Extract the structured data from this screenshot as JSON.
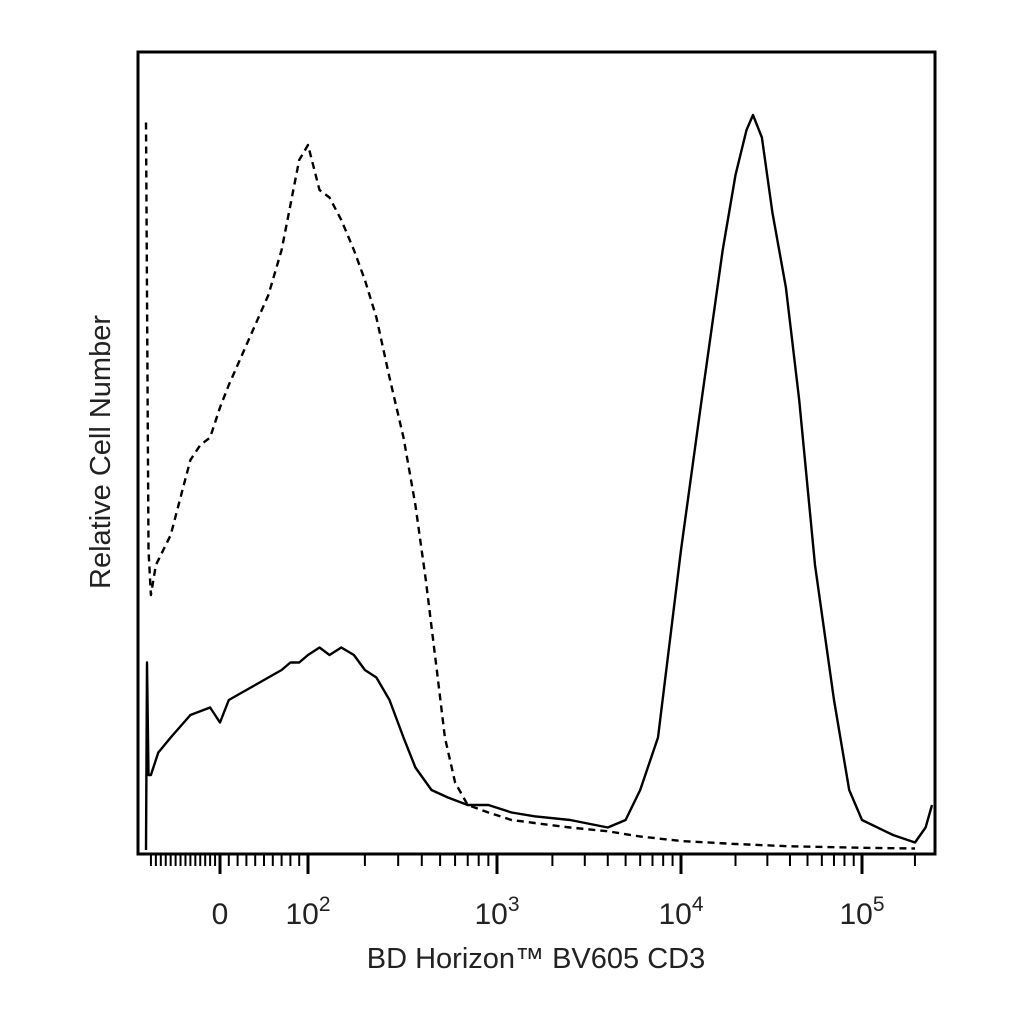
{
  "chart_data": {
    "type": "line",
    "title": "",
    "xlabel": "BD Horizon™ BV605 CD3",
    "ylabel": "Relative Cell Number",
    "x_scale": "logicle",
    "xlim": [
      -150,
      250000
    ],
    "ylim": [
      0,
      100
    ],
    "x_ticks": [
      {
        "value": 0,
        "base": "0",
        "exp": ""
      },
      {
        "value": 100,
        "base": "10",
        "exp": "2"
      },
      {
        "value": 1000,
        "base": "10",
        "exp": "3"
      },
      {
        "value": 10000,
        "base": "10",
        "exp": "4"
      },
      {
        "value": 100000,
        "base": "10",
        "exp": "5"
      }
    ],
    "grid": false,
    "legend": "none",
    "series": [
      {
        "style": "dashed",
        "color": "#000000",
        "points": [
          [
            -150,
            97
          ],
          [
            -145,
            40
          ],
          [
            -140,
            34
          ],
          [
            -130,
            38
          ],
          [
            -115,
            40
          ],
          [
            -100,
            42
          ],
          [
            -80,
            47
          ],
          [
            -60,
            52
          ],
          [
            -40,
            54
          ],
          [
            -20,
            55
          ],
          [
            0,
            59
          ],
          [
            10,
            62
          ],
          [
            25,
            66
          ],
          [
            40,
            70
          ],
          [
            55,
            74
          ],
          [
            70,
            80
          ],
          [
            80,
            86
          ],
          [
            90,
            92
          ],
          [
            100,
            94
          ],
          [
            115,
            88
          ],
          [
            130,
            87
          ],
          [
            150,
            84
          ],
          [
            175,
            80
          ],
          [
            200,
            76
          ],
          [
            230,
            71
          ],
          [
            270,
            63
          ],
          [
            320,
            55
          ],
          [
            370,
            46
          ],
          [
            420,
            36
          ],
          [
            480,
            24
          ],
          [
            530,
            15
          ],
          [
            600,
            9
          ],
          [
            700,
            6
          ],
          [
            900,
            5
          ],
          [
            1200,
            4
          ],
          [
            1600,
            3.6
          ],
          [
            2500,
            3
          ],
          [
            4000,
            2.5
          ],
          [
            6000,
            1.8
          ],
          [
            10000,
            1.2
          ],
          [
            20000,
            0.8
          ],
          [
            40000,
            0.5
          ],
          [
            100000,
            0.3
          ],
          [
            200000,
            0.2
          ]
        ]
      },
      {
        "style": "solid",
        "color": "#000000",
        "points": [
          [
            -150,
            0
          ],
          [
            -148,
            25
          ],
          [
            -145,
            10
          ],
          [
            -140,
            10
          ],
          [
            -125,
            13
          ],
          [
            -100,
            15
          ],
          [
            -60,
            18
          ],
          [
            -20,
            19
          ],
          [
            0,
            17
          ],
          [
            10,
            20
          ],
          [
            25,
            21
          ],
          [
            40,
            22
          ],
          [
            55,
            23
          ],
          [
            70,
            24
          ],
          [
            80,
            25
          ],
          [
            90,
            25
          ],
          [
            100,
            26
          ],
          [
            115,
            27
          ],
          [
            130,
            26
          ],
          [
            150,
            27
          ],
          [
            175,
            26
          ],
          [
            200,
            24
          ],
          [
            230,
            23
          ],
          [
            270,
            20
          ],
          [
            320,
            15
          ],
          [
            370,
            11
          ],
          [
            450,
            8
          ],
          [
            550,
            7
          ],
          [
            700,
            6
          ],
          [
            900,
            6
          ],
          [
            1200,
            5
          ],
          [
            1600,
            4.5
          ],
          [
            2500,
            4
          ],
          [
            4000,
            3
          ],
          [
            5000,
            4
          ],
          [
            6000,
            8
          ],
          [
            7500,
            15
          ],
          [
            10000,
            40
          ],
          [
            13000,
            60
          ],
          [
            17000,
            80
          ],
          [
            20000,
            90
          ],
          [
            23000,
            96
          ],
          [
            25000,
            98
          ],
          [
            28000,
            95
          ],
          [
            32000,
            85
          ],
          [
            38000,
            75
          ],
          [
            45000,
            60
          ],
          [
            55000,
            38
          ],
          [
            70000,
            20
          ],
          [
            85000,
            8
          ],
          [
            100000,
            4
          ],
          [
            150000,
            2
          ],
          [
            200000,
            1
          ],
          [
            230000,
            3
          ],
          [
            250000,
            6
          ]
        ]
      }
    ]
  }
}
